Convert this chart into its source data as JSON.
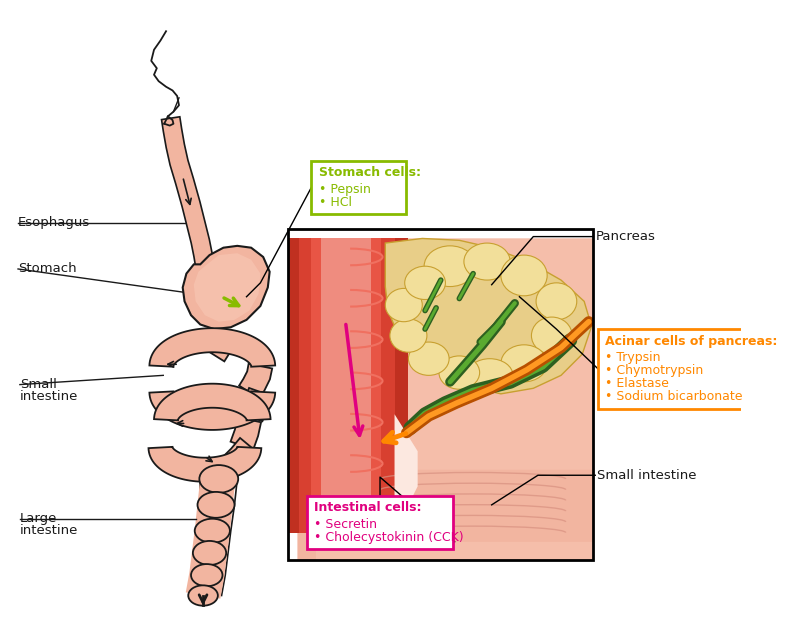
{
  "background_color": "#ffffff",
  "labels": {
    "esophagus": "Esophagus",
    "stomach": "Stomach",
    "small_intestine": "Small\nintestine",
    "large_intestine": "Large\nintestine",
    "pancreas": "Pancreas",
    "small_intestine_right": "Small intestine"
  },
  "box_stomach": {
    "title": "Stomach cells:",
    "items": [
      "• Pepsin",
      "• HCl"
    ],
    "border_color": "#88bb00",
    "title_color": "#88bb00",
    "text_color": "#88bb00"
  },
  "box_acinar": {
    "title": "Acinar cells of pancreas:",
    "items": [
      "• Trypsin",
      "• Chymotrypsin",
      "• Elastase",
      "• Sodium bicarbonate"
    ],
    "border_color": "#ff8800",
    "title_color": "#ff8800",
    "text_color": "#ff8800"
  },
  "box_intestinal": {
    "title": "Intestinal cells:",
    "items": [
      "• Secretin",
      "• Cholecystokinin (CCK)"
    ],
    "border_color": "#e0007f",
    "title_color": "#e0007f",
    "text_color": "#e0007f"
  },
  "digestive_color": "#f2b5a0",
  "digestive_dark": "#e8907a",
  "digestive_outline": "#1a1a1a"
}
